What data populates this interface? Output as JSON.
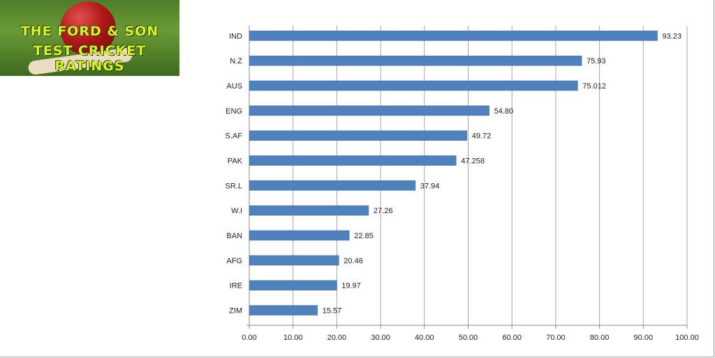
{
  "logo": {
    "line1": "THE FORD & SON",
    "line2": "TEST CRICKET RATINGS"
  },
  "chart_data": {
    "type": "bar",
    "orientation": "horizontal",
    "categories": [
      "IND",
      "N.Z",
      "AUS",
      "ENG",
      "S.AF",
      "PAK",
      "SR.L",
      "W.I",
      "BAN",
      "AFG",
      "IRE",
      "ZIM"
    ],
    "values": [
      93.23,
      75.93,
      75.012,
      54.8,
      49.72,
      47.258,
      37.94,
      27.26,
      22.85,
      20.46,
      19.97,
      15.57
    ],
    "value_labels": [
      "93.23",
      "75.93",
      "75.012",
      "54.80",
      "49.72",
      "47.258",
      "37.94",
      "27.26",
      "22.85",
      "20.46",
      "19.97",
      "15.57"
    ],
    "xlim": [
      0,
      100
    ],
    "xticks": [
      "0.00",
      "10.00",
      "20.00",
      "30.00",
      "40.00",
      "50.00",
      "60.00",
      "70.00",
      "80.00",
      "90.00",
      "100.00"
    ],
    "grid": true,
    "bar_color": "#4f81bd",
    "title": "",
    "xlabel": "",
    "ylabel": ""
  }
}
